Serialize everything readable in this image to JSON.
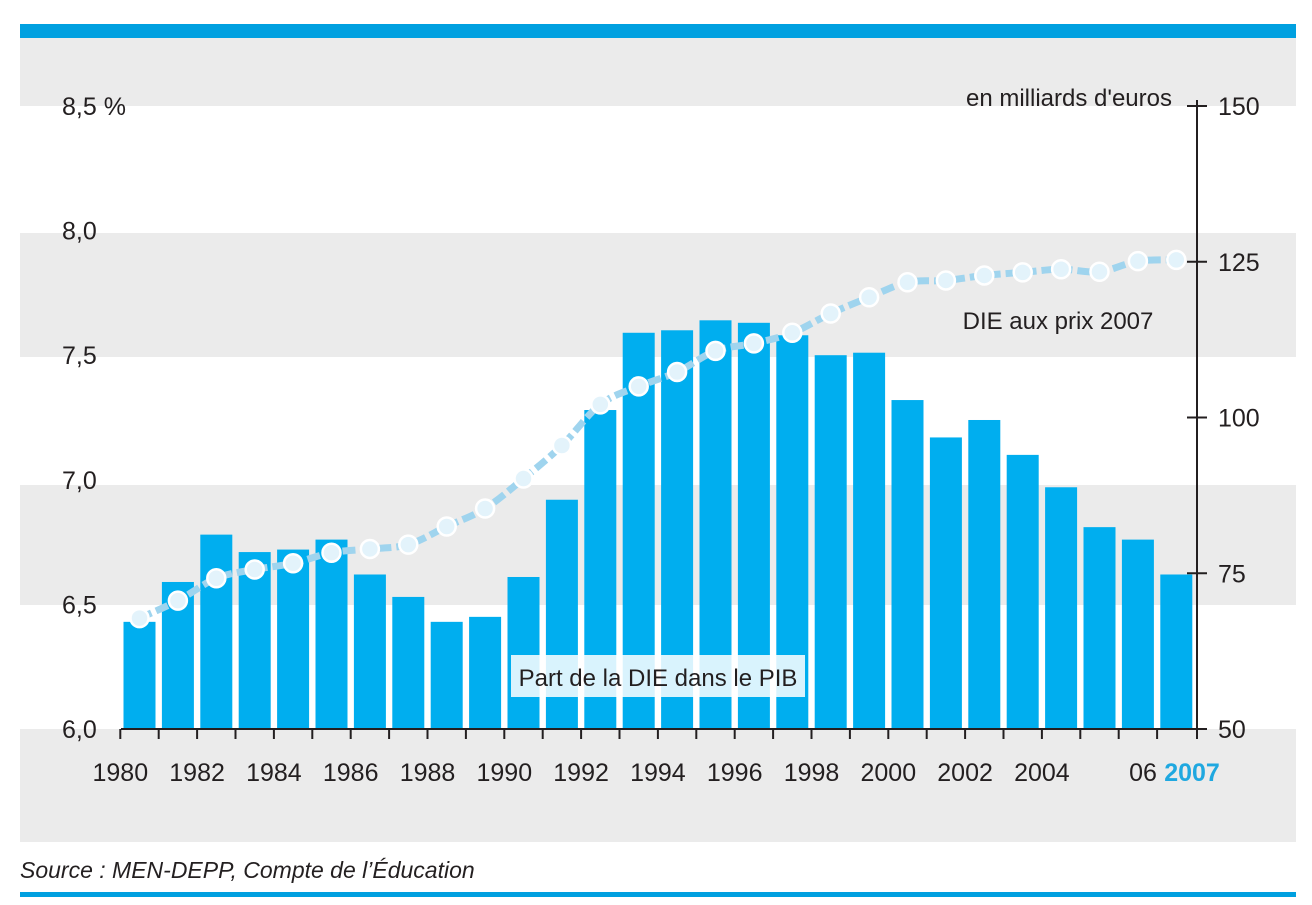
{
  "colors": {
    "band": "#ebebeb",
    "bar": "#00aeef",
    "line": "#9fd4ee",
    "accent_rule": "#00a0e0",
    "axis": "#231f20",
    "highlight_year": "#1fa8e0"
  },
  "chart_data": {
    "type": "bar",
    "left_axis": {
      "ylim": [
        6.0,
        8.5
      ],
      "ticks": [
        "8,5 %",
        "8,0",
        "7,5",
        "7,0",
        "6,5",
        "6,0"
      ],
      "tick_values": [
        8.5,
        8.0,
        7.5,
        7.0,
        6.5,
        6.0
      ]
    },
    "right_axis": {
      "label": "en milliards d'euros",
      "ylim": [
        50,
        150
      ],
      "ticks": [
        "150",
        "125",
        "100",
        "75",
        "50"
      ],
      "tick_values": [
        150,
        125,
        100,
        75,
        50
      ]
    },
    "x_tick_labels": [
      {
        "year": 1980,
        "text": "1980"
      },
      {
        "year": 1982,
        "text": "1982"
      },
      {
        "year": 1984,
        "text": "1984"
      },
      {
        "year": 1986,
        "text": "1986"
      },
      {
        "year": 1988,
        "text": "1988"
      },
      {
        "year": 1990,
        "text": "1990"
      },
      {
        "year": 1992,
        "text": "1992"
      },
      {
        "year": 1994,
        "text": "1994"
      },
      {
        "year": 1996,
        "text": "1996"
      },
      {
        "year": 1998,
        "text": "1998"
      },
      {
        "year": 2000,
        "text": "2000"
      },
      {
        "year": 2002,
        "text": "2002"
      },
      {
        "year": 2004,
        "text": "2004"
      },
      {
        "year": 2006,
        "text": "06"
      },
      {
        "year": 2007,
        "text": "2007",
        "highlight": true
      }
    ],
    "years": [
      1980,
      1981,
      1982,
      1983,
      1984,
      1985,
      1986,
      1987,
      1988,
      1989,
      1990,
      1991,
      1992,
      1993,
      1994,
      1995,
      1996,
      1997,
      1998,
      1999,
      2000,
      2001,
      2002,
      2003,
      2004,
      2005,
      2006,
      2007
    ],
    "series": [
      {
        "name": "Part de la DIE dans le PIB",
        "axis": "left",
        "kind": "bar",
        "values": [
          6.43,
          6.59,
          6.78,
          6.71,
          6.72,
          6.76,
          6.62,
          6.53,
          6.43,
          6.45,
          6.61,
          6.92,
          7.28,
          7.59,
          7.6,
          7.64,
          7.63,
          7.58,
          7.5,
          7.51,
          7.32,
          7.17,
          7.24,
          7.1,
          6.97,
          6.81,
          6.76,
          6.62
        ]
      },
      {
        "name": "DIE aux prix 2007",
        "axis": "right",
        "kind": "line",
        "values": [
          67.8,
          70.6,
          74.2,
          75.6,
          76.6,
          78.3,
          78.9,
          79.6,
          82.5,
          85.4,
          90.2,
          95.5,
          102.1,
          105.0,
          107.3,
          110.7,
          111.9,
          113.6,
          116.7,
          119.3,
          121.7,
          122.0,
          122.8,
          123.3,
          123.8,
          123.4,
          125.1,
          125.3
        ]
      }
    ],
    "series_labels": [
      "Part de la DIE dans le PIB",
      "DIE aux prix 2007"
    ]
  },
  "source": "Source : MEN-DEPP, Compte de l’Éducation"
}
